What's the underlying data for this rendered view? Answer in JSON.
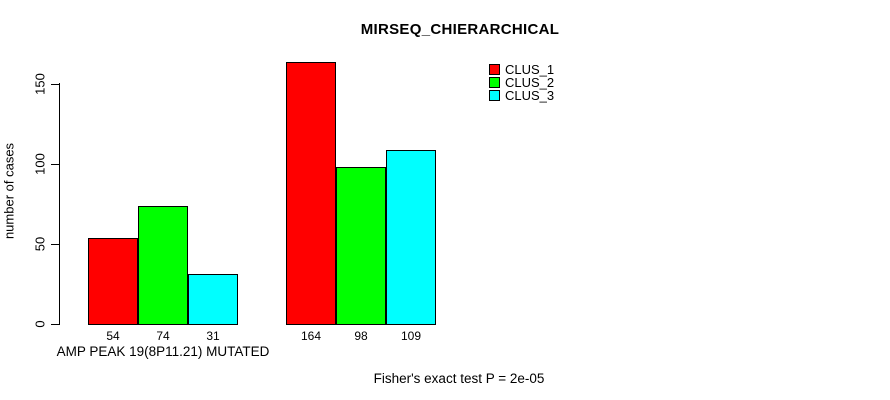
{
  "chart_data": {
    "type": "bar",
    "title": "MIRSEQ_CHIERARCHICAL",
    "ylabel": "number of cases",
    "yticks": [
      0,
      50,
      100,
      150
    ],
    "ylim": [
      0,
      165
    ],
    "grid": false,
    "legend_position": "top-right",
    "series": [
      {
        "name": "CLUS_1",
        "color": "#ff0000"
      },
      {
        "name": "CLUS_2",
        "color": "#00ff00"
      },
      {
        "name": "CLUS_3",
        "color": "#00ffff"
      }
    ],
    "groups": [
      {
        "label": "AMP PEAK 19(8P11.21) MUTATED",
        "values": [
          54,
          74,
          31
        ]
      },
      {
        "label": "",
        "values": [
          164,
          98,
          109
        ]
      }
    ],
    "bar_value_labels": [
      [
        54,
        74,
        31
      ],
      [
        164,
        98,
        109
      ]
    ],
    "footnote": "Fisher's exact test P = 2e-05"
  }
}
